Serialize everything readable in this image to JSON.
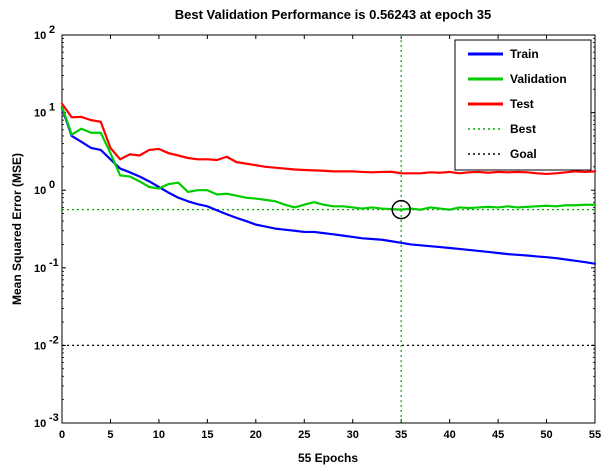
{
  "chart_data": {
    "type": "line",
    "title": "Best Validation Performance is 0.56243 at epoch 35",
    "xlabel": "55 Epochs",
    "ylabel": "Mean Squared Error  (MSE)",
    "xlim": [
      0,
      55
    ],
    "ylim": [
      0.001,
      100
    ],
    "yscale": "log",
    "xticks": [
      0,
      5,
      10,
      15,
      20,
      25,
      30,
      35,
      40,
      45,
      50,
      55
    ],
    "yticks": [
      {
        "value": 0.001,
        "base": "10",
        "exp": "-3"
      },
      {
        "value": 0.01,
        "base": "10",
        "exp": "-2"
      },
      {
        "value": 0.1,
        "base": "10",
        "exp": "-1"
      },
      {
        "value": 1,
        "base": "10",
        "exp": "0"
      },
      {
        "value": 10,
        "base": "10",
        "exp": "1"
      },
      {
        "value": 100,
        "base": "10",
        "exp": "2"
      }
    ],
    "grid": false,
    "legend_position": "top-right",
    "series": [
      {
        "name": "Train",
        "color": "#0000ff",
        "style": "solid",
        "x": [
          0,
          1,
          2,
          3,
          4,
          5,
          6,
          7,
          8,
          9,
          10,
          11,
          12,
          13,
          14,
          15,
          16,
          17,
          18,
          19,
          20,
          21,
          22,
          23,
          24,
          25,
          26,
          27,
          28,
          29,
          30,
          31,
          32,
          33,
          34,
          35,
          36,
          37,
          38,
          39,
          40,
          41,
          42,
          43,
          44,
          45,
          46,
          47,
          48,
          49,
          50,
          51,
          52,
          53,
          54,
          55
        ],
        "y": [
          11.5,
          5.0,
          4.2,
          3.5,
          3.3,
          2.5,
          1.9,
          1.7,
          1.5,
          1.3,
          1.1,
          0.93,
          0.8,
          0.72,
          0.66,
          0.62,
          0.55,
          0.49,
          0.44,
          0.4,
          0.36,
          0.34,
          0.32,
          0.31,
          0.3,
          0.29,
          0.29,
          0.28,
          0.27,
          0.26,
          0.25,
          0.24,
          0.235,
          0.23,
          0.22,
          0.21,
          0.2,
          0.195,
          0.19,
          0.185,
          0.18,
          0.175,
          0.17,
          0.165,
          0.16,
          0.155,
          0.15,
          0.147,
          0.144,
          0.14,
          0.137,
          0.133,
          0.128,
          0.123,
          0.118,
          0.113
        ]
      },
      {
        "name": "Validation",
        "color": "#00cc00",
        "style": "solid",
        "x": [
          0,
          1,
          2,
          3,
          4,
          5,
          6,
          7,
          8,
          9,
          10,
          11,
          12,
          13,
          14,
          15,
          16,
          17,
          18,
          19,
          20,
          21,
          22,
          23,
          24,
          25,
          26,
          27,
          28,
          29,
          30,
          31,
          32,
          33,
          34,
          35,
          36,
          37,
          38,
          39,
          40,
          41,
          42,
          43,
          44,
          45,
          46,
          47,
          48,
          49,
          50,
          51,
          52,
          53,
          54,
          55
        ],
        "y": [
          12.0,
          5.2,
          6.2,
          5.5,
          5.5,
          3.0,
          1.55,
          1.5,
          1.3,
          1.1,
          1.05,
          1.2,
          1.25,
          0.95,
          1.0,
          1.0,
          0.88,
          0.9,
          0.85,
          0.8,
          0.78,
          0.75,
          0.72,
          0.65,
          0.6,
          0.65,
          0.7,
          0.65,
          0.62,
          0.62,
          0.6,
          0.58,
          0.6,
          0.58,
          0.57,
          0.5624,
          0.58,
          0.56,
          0.6,
          0.58,
          0.56,
          0.6,
          0.59,
          0.6,
          0.61,
          0.6,
          0.62,
          0.6,
          0.61,
          0.62,
          0.63,
          0.62,
          0.64,
          0.64,
          0.65,
          0.65
        ]
      },
      {
        "name": "Test",
        "color": "#ff0000",
        "style": "solid",
        "x": [
          0,
          1,
          2,
          3,
          4,
          5,
          6,
          7,
          8,
          9,
          10,
          11,
          12,
          13,
          14,
          15,
          16,
          17,
          18,
          19,
          20,
          21,
          22,
          23,
          24,
          25,
          26,
          27,
          28,
          29,
          30,
          31,
          32,
          33,
          34,
          35,
          36,
          37,
          38,
          39,
          40,
          41,
          42,
          43,
          44,
          45,
          46,
          47,
          48,
          49,
          50,
          51,
          52,
          53,
          54,
          55
        ],
        "y": [
          13.0,
          8.7,
          8.8,
          8.0,
          7.6,
          3.5,
          2.5,
          2.9,
          2.8,
          3.3,
          3.4,
          3.0,
          2.8,
          2.6,
          2.5,
          2.5,
          2.45,
          2.7,
          2.3,
          2.2,
          2.1,
          2.0,
          1.95,
          1.9,
          1.85,
          1.82,
          1.8,
          1.78,
          1.75,
          1.75,
          1.75,
          1.72,
          1.7,
          1.72,
          1.73,
          1.65,
          1.65,
          1.65,
          1.7,
          1.68,
          1.72,
          1.65,
          1.7,
          1.72,
          1.68,
          1.72,
          1.7,
          1.72,
          1.7,
          1.65,
          1.62,
          1.65,
          1.7,
          1.75,
          1.72,
          1.75
        ]
      }
    ],
    "best": {
      "label": "Best",
      "color": "#00aa00",
      "style": "dotted",
      "epoch": 35,
      "value": 0.56243
    },
    "goal": {
      "label": "Goal",
      "color": "#000000",
      "style": "dotted",
      "value": 0.01
    }
  }
}
